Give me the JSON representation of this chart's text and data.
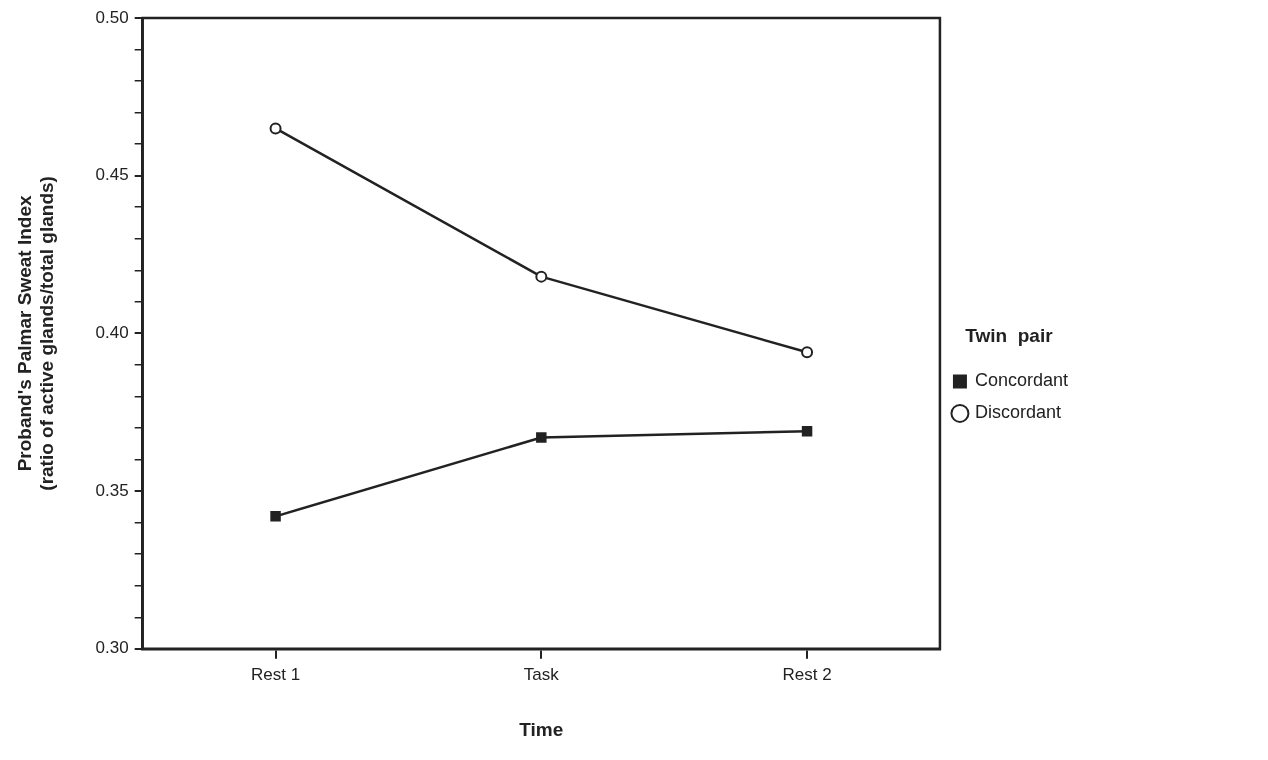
{
  "chart_data": {
    "type": "line",
    "xlabel": "Time",
    "ylabel": "Proband's Palmar Sweat Index\n(ratio of active glands/total glands)",
    "legend_title": "Twin  pair",
    "legend": "right",
    "categories": [
      "Rest 1",
      "Task",
      "Rest 2"
    ],
    "series": [
      {
        "name": "Concordant",
        "color": "#222222",
        "marker": "square",
        "values": [
          0.342,
          0.367,
          0.369
        ]
      },
      {
        "name": "Discordant",
        "color": "#222222",
        "marker": "circle",
        "values": [
          0.465,
          0.418,
          0.394
        ]
      }
    ],
    "ylim": [
      0.3,
      0.5
    ],
    "yticks": [
      {
        "value": 0.3,
        "label": "0.30"
      },
      {
        "value": 0.31,
        "label": null
      },
      {
        "value": 0.32,
        "label": null
      },
      {
        "value": 0.33,
        "label": null
      },
      {
        "value": 0.34,
        "label": null
      },
      {
        "value": 0.35,
        "label": "0.35"
      },
      {
        "value": 0.36,
        "label": null
      },
      {
        "value": 0.37,
        "label": null
      },
      {
        "value": 0.38,
        "label": null
      },
      {
        "value": 0.39,
        "label": null
      },
      {
        "value": 0.4,
        "label": "0.40"
      },
      {
        "value": 0.41,
        "label": null
      },
      {
        "value": 0.42,
        "label": null
      },
      {
        "value": 0.43,
        "label": null
      },
      {
        "value": 0.44,
        "label": null
      },
      {
        "value": 0.45,
        "label": "0.45"
      },
      {
        "value": 0.46,
        "label": null
      },
      {
        "value": 0.47,
        "label": null
      },
      {
        "value": 0.48,
        "label": null
      },
      {
        "value": 0.49,
        "label": null
      },
      {
        "value": 0.5,
        "label": "0.50"
      }
    ],
    "grid": false,
    "line_style": "solid"
  }
}
